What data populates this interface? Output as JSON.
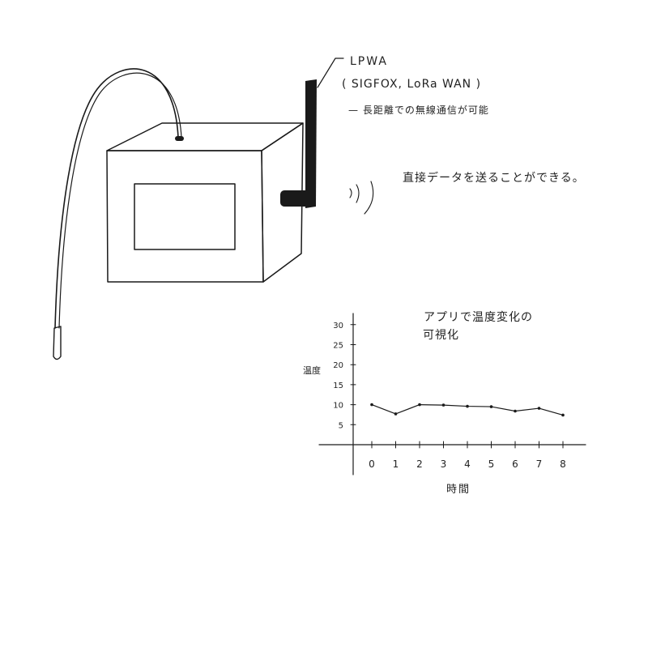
{
  "annotations": {
    "lpwa": "LPWA",
    "protocols": "( SIGFOX, LoRa WAN )",
    "long_range": "— 長距離での無線通信が可能",
    "direct": "直接データを送ることができる。",
    "app": "アプリで温度変化の",
    "visualize": "可視化"
  },
  "chart_data": {
    "type": "line",
    "x": [
      0,
      1,
      2,
      3,
      4,
      5,
      6,
      7,
      8
    ],
    "xticks": [
      "0",
      "1",
      "2",
      "3",
      "4",
      "5",
      "6",
      "7",
      "8"
    ],
    "yticks": [
      "5",
      "10",
      "15",
      "20",
      "25",
      "30"
    ],
    "ytick_values": [
      5,
      10,
      15,
      20,
      25,
      30
    ],
    "series": [
      {
        "values": [
          10,
          7.7,
          10,
          9.9,
          9.6,
          9.5,
          8.4,
          9.1,
          7.4
        ]
      }
    ],
    "xlabel": "時間",
    "ylabel": "温度",
    "xlim": [
      -0.8,
      9
    ],
    "ylim": [
      0,
      32
    ],
    "grid": false
  }
}
